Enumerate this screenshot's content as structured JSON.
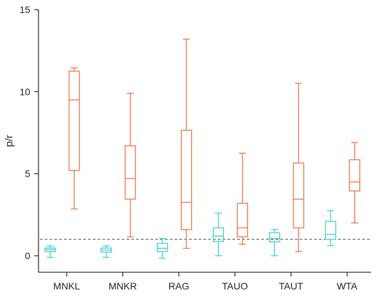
{
  "chart_data": {
    "type": "boxplot",
    "title": "",
    "xlabel": "",
    "ylabel": "p/r",
    "ylim": [
      -1,
      15
    ],
    "yticks": [
      0,
      5,
      10,
      15
    ],
    "reference_line": 1,
    "categories": [
      "MNKL",
      "MNKR",
      "RAG",
      "TAUO",
      "TAUT",
      "WTA"
    ],
    "colors": {
      "group_a": "#4fd1d5",
      "group_b": "#ef7e52"
    },
    "series": [
      {
        "key": "a",
        "color": "#4fd1d5",
        "boxes": [
          {
            "min": -0.1,
            "q1": 0.25,
            "median": 0.37,
            "q3": 0.47,
            "max": 0.6
          },
          {
            "min": -0.1,
            "q1": 0.22,
            "median": 0.35,
            "q3": 0.47,
            "max": 0.6
          },
          {
            "min": -0.15,
            "q1": 0.25,
            "median": 0.45,
            "q3": 0.75,
            "max": 1.05
          },
          {
            "min": 0.0,
            "q1": 0.87,
            "median": 1.2,
            "q3": 1.7,
            "max": 2.6
          },
          {
            "min": 0.0,
            "q1": 0.85,
            "median": 1.05,
            "q3": 1.4,
            "max": 1.6
          },
          {
            "min": 0.62,
            "q1": 1.0,
            "median": 1.3,
            "q3": 2.1,
            "max": 2.75
          }
        ]
      },
      {
        "key": "b",
        "color": "#ef7e52",
        "boxes": [
          {
            "min": 2.85,
            "q1": 5.2,
            "median": 9.5,
            "q3": 11.25,
            "max": 11.45
          },
          {
            "min": 1.15,
            "q1": 3.45,
            "median": 4.7,
            "q3": 6.7,
            "max": 9.9
          },
          {
            "min": 0.45,
            "q1": 1.6,
            "median": 3.25,
            "q3": 7.65,
            "max": 13.2
          },
          {
            "min": 0.7,
            "q1": 1.15,
            "median": 1.7,
            "q3": 3.2,
            "max": 6.25
          },
          {
            "min": 0.25,
            "q1": 1.7,
            "median": 3.45,
            "q3": 5.65,
            "max": 10.5
          },
          {
            "min": 2.0,
            "q1": 3.95,
            "median": 4.5,
            "q3": 5.85,
            "max": 6.9
          }
        ]
      }
    ]
  }
}
